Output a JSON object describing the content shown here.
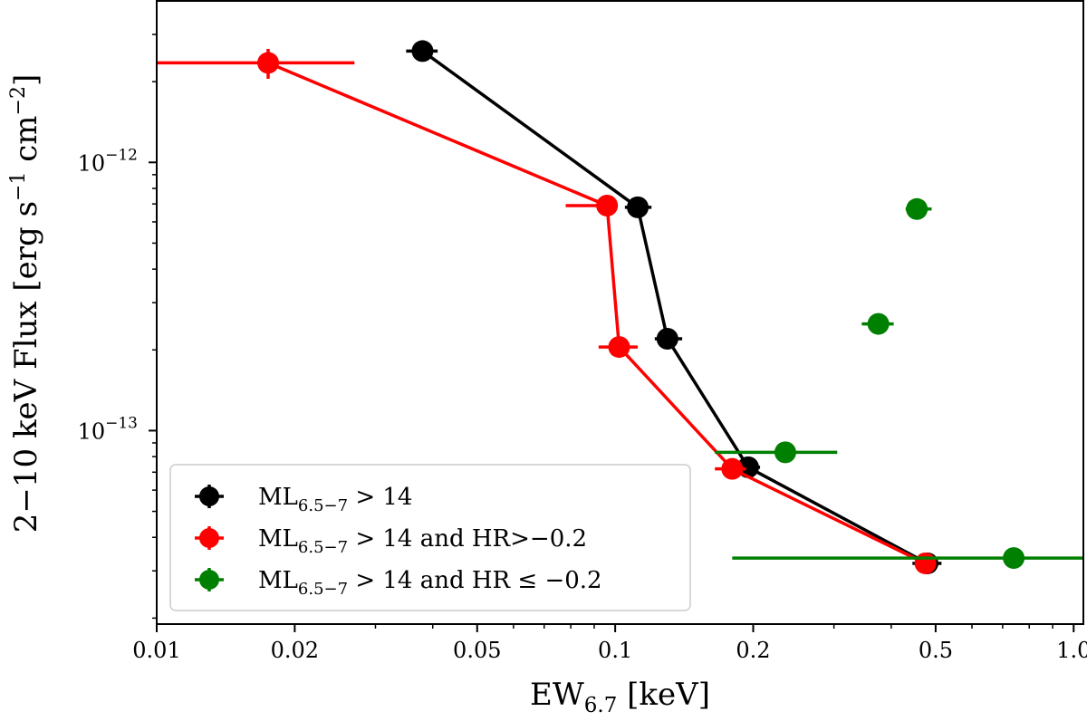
{
  "chart_data": {
    "type": "scatter",
    "title": "",
    "xlabel": {
      "main": "EW",
      "sub": "6.7",
      "unit": " [keV]"
    },
    "ylabel": {
      "pre": "2−10 keV Flux [erg s",
      "exp1": "−1",
      "mid": " cm",
      "exp2": "−2",
      "post": "]"
    },
    "xscale": "log",
    "yscale": "log",
    "xlim": [
      0.01,
      1.05
    ],
    "ylim": [
      1.9e-14,
      4e-12
    ],
    "x_major_ticks": [
      {
        "value": 0.01,
        "label": "0.01"
      },
      {
        "value": 0.02,
        "label": "0.02"
      },
      {
        "value": 0.05,
        "label": "0.05"
      },
      {
        "value": 0.1,
        "label": "0.1"
      },
      {
        "value": 0.2,
        "label": "0.2"
      },
      {
        "value": 0.5,
        "label": "0.5"
      },
      {
        "value": 1.0,
        "label": "1.0"
      }
    ],
    "y_major_ticks": [
      {
        "value": 1e-13,
        "base": "10",
        "exp": "−13"
      },
      {
        "value": 1e-12,
        "base": "10",
        "exp": "−12"
      }
    ],
    "y_minor_ticks": [
      2e-14,
      3e-14,
      4e-14,
      5e-14,
      6e-14,
      7e-14,
      8e-14,
      9e-14,
      2e-13,
      3e-13,
      4e-13,
      5e-13,
      6e-13,
      7e-13,
      8e-13,
      9e-13,
      2e-12,
      3e-12
    ],
    "legend_position": "lower-left",
    "series": [
      {
        "name": "ML6.5-7 > 14",
        "legend": {
          "pre": "ML",
          "sub": "6.5−7",
          "post": " > 14"
        },
        "color": "#000000",
        "connected": true,
        "points": [
          {
            "x": 0.038,
            "y": 2.6e-12,
            "xerr": [
              0.035,
              0.041
            ],
            "yerr": [
              2.45e-12,
              2.75e-12
            ]
          },
          {
            "x": 0.112,
            "y": 6.8e-13,
            "xerr": [
              0.105,
              0.12
            ],
            "yerr": [
              6.4e-13,
              7.2e-13
            ]
          },
          {
            "x": 0.13,
            "y": 2.2e-13,
            "xerr": [
              0.122,
              0.14
            ],
            "yerr": [
              2.1e-13,
              2.3e-13
            ]
          },
          {
            "x": 0.195,
            "y": 7.3e-14,
            "xerr": [
              0.183,
              0.207
            ],
            "yerr": [
              7e-14,
              7.6e-14
            ]
          },
          {
            "x": 0.48,
            "y": 3.2e-14,
            "xerr": [
              0.445,
              0.515
            ],
            "yerr": [
              3.1e-14,
              3.3e-14
            ]
          }
        ]
      },
      {
        "name": "ML6.5-7 > 14 and HR>-0.2",
        "legend": {
          "pre": "ML",
          "sub": "6.5−7",
          "post": " > 14 and HR>−0.2"
        },
        "color": "#ff0000",
        "connected": true,
        "points": [
          {
            "x": 0.0175,
            "y": 2.35e-12,
            "xerr": [
              0.01,
              0.027
            ],
            "yerr": [
              2.05e-12,
              2.65e-12
            ]
          },
          {
            "x": 0.096,
            "y": 6.9e-13,
            "xerr": [
              0.078,
              0.1
            ],
            "yerr": [
              6.6e-13,
              7.2e-13
            ]
          },
          {
            "x": 0.102,
            "y": 2.05e-13,
            "xerr": [
              0.092,
              0.112
            ],
            "yerr": [
              1.95e-13,
              2.15e-13
            ]
          },
          {
            "x": 0.18,
            "y": 7.2e-14,
            "xerr": [
              0.165,
              0.193
            ],
            "yerr": [
              6.9e-14,
              7.5e-14
            ]
          },
          {
            "x": 0.475,
            "y": 3.2e-14,
            "xerr": [
              0.455,
              0.495
            ],
            "yerr": [
              3.1e-14,
              3.3e-14
            ]
          }
        ]
      },
      {
        "name": "ML6.5-7 > 14 and HR≤-0.2",
        "legend": {
          "pre": "ML",
          "sub": "6.5−7",
          "post": " > 14 and HR ≤ −0.2"
        },
        "color": "#008000",
        "connected": false,
        "points": [
          {
            "x": 0.455,
            "y": 6.7e-13,
            "xerr": [
              0.43,
              0.49
            ],
            "yerr": [
              6.55e-13,
              6.85e-13
            ]
          },
          {
            "x": 0.375,
            "y": 2.5e-13,
            "xerr": [
              0.345,
              0.405
            ],
            "yerr": [
              2.45e-13,
              2.55e-13
            ]
          },
          {
            "x": 0.235,
            "y": 8.3e-14,
            "xerr": [
              0.165,
              0.305
            ],
            "yerr": [
              8.15e-14,
              8.45e-14
            ]
          },
          {
            "x": 0.74,
            "y": 3.35e-14,
            "xerr": [
              0.18,
              1.05
            ],
            "yerr": [
              3.3e-14,
              3.4e-14
            ]
          }
        ]
      }
    ]
  }
}
